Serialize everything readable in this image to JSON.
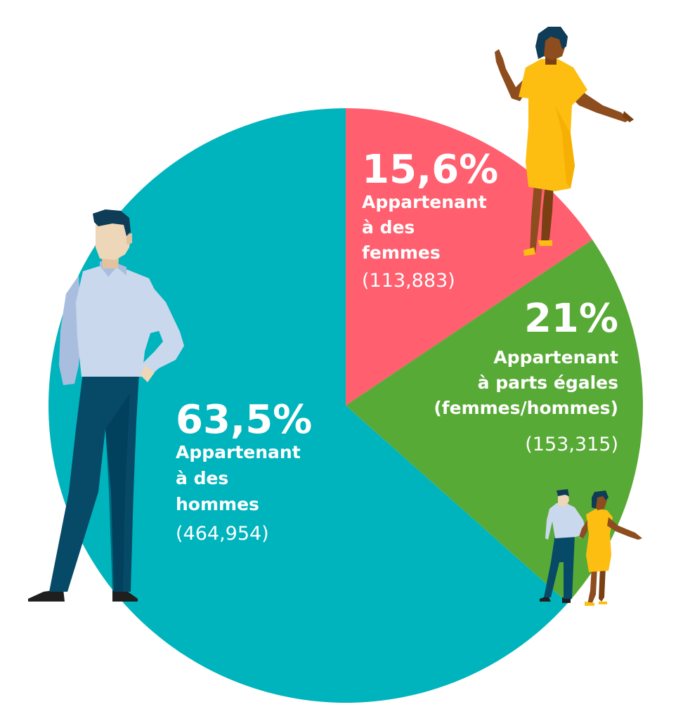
{
  "chart_data": {
    "type": "pie",
    "start_angle": 0,
    "direction": "clockwise",
    "slices": [
      {
        "key": "women",
        "percent_label": "15,6%",
        "value": 15.6,
        "label_lines": [
          "Appartenant",
          "à des",
          "femmes"
        ],
        "count": "(113,883)",
        "color": "#ff5f6e"
      },
      {
        "key": "equal",
        "percent_label": "21%",
        "value": 21,
        "label_lines": [
          "Appartenant",
          "à parts égales",
          "(femmes/hommes)"
        ],
        "count": "(153,315)",
        "color": "#58aa36"
      },
      {
        "key": "men",
        "percent_label": "63,5%",
        "value": 63.5,
        "label_lines": [
          "Appartenant",
          "à des",
          "hommes"
        ],
        "count": "(464,954)",
        "color": "#00b4bd"
      }
    ]
  },
  "illustrations": {
    "man": "standing-man-figure",
    "woman": "standing-woman-figure",
    "couple": "couple-figure"
  },
  "colors": {
    "skin_light": "#eed6b8",
    "skin_dark": "#8d4d1e",
    "hair": "#0f3c56",
    "shirt": "#c9d8ec",
    "pants": "#064a67",
    "dress": "#fdbe11"
  }
}
